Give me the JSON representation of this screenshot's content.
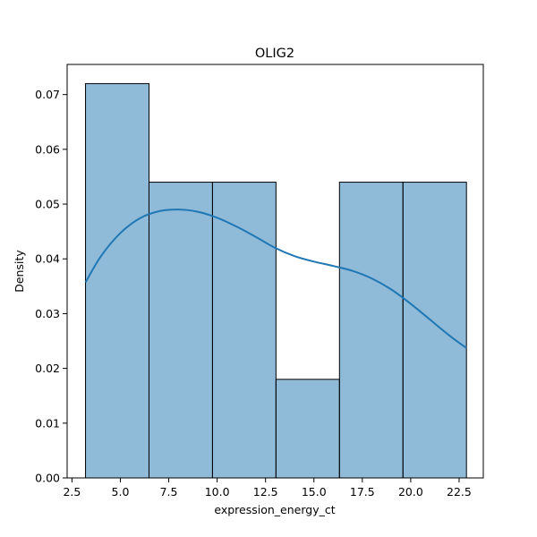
{
  "chart_data": {
    "type": "histogram",
    "title": "OLIG2",
    "xlabel": "expression_energy_ct",
    "ylabel": "Density",
    "xlim": [
      2.25,
      23.75
    ],
    "ylim": [
      0,
      0.0755
    ],
    "x_ticks": [
      2.5,
      5.0,
      7.5,
      10.0,
      12.5,
      15.0,
      17.5,
      20.0,
      22.5
    ],
    "x_tick_labels": [
      "2.5",
      "5.0",
      "7.5",
      "10.0",
      "12.5",
      "15.0",
      "17.5",
      "20.0",
      "22.5"
    ],
    "y_ticks": [
      0.0,
      0.01,
      0.02,
      0.03,
      0.04,
      0.05,
      0.06,
      0.07
    ],
    "y_tick_labels": [
      "0.00",
      "0.01",
      "0.02",
      "0.03",
      "0.04",
      "0.05",
      "0.06",
      "0.07"
    ],
    "grid": false,
    "bins": [
      {
        "x0": 3.2,
        "x1": 6.48,
        "density": 0.072
      },
      {
        "x0": 6.48,
        "x1": 9.76,
        "density": 0.054
      },
      {
        "x0": 9.76,
        "x1": 13.04,
        "density": 0.054
      },
      {
        "x0": 13.04,
        "x1": 16.32,
        "density": 0.018
      },
      {
        "x0": 16.32,
        "x1": 19.6,
        "density": 0.054
      },
      {
        "x0": 19.6,
        "x1": 22.88,
        "density": 0.054
      }
    ],
    "kde": {
      "x": [
        3.2,
        4.0,
        5.0,
        6.0,
        7.0,
        8.0,
        9.0,
        10.0,
        11.0,
        12.0,
        13.0,
        14.0,
        15.0,
        16.0,
        17.0,
        18.0,
        19.0,
        20.0,
        21.0,
        22.0,
        22.88
      ],
      "y": [
        0.0357,
        0.0405,
        0.0447,
        0.0474,
        0.0487,
        0.049,
        0.0486,
        0.0475,
        0.0459,
        0.044,
        0.042,
        0.0405,
        0.0395,
        0.0387,
        0.0378,
        0.0364,
        0.0344,
        0.0318,
        0.0289,
        0.026,
        0.0237
      ]
    },
    "colors": {
      "bar_fill": "#1f77b4",
      "bar_edge": "#000000",
      "kde_line": "#1f77b4"
    }
  }
}
